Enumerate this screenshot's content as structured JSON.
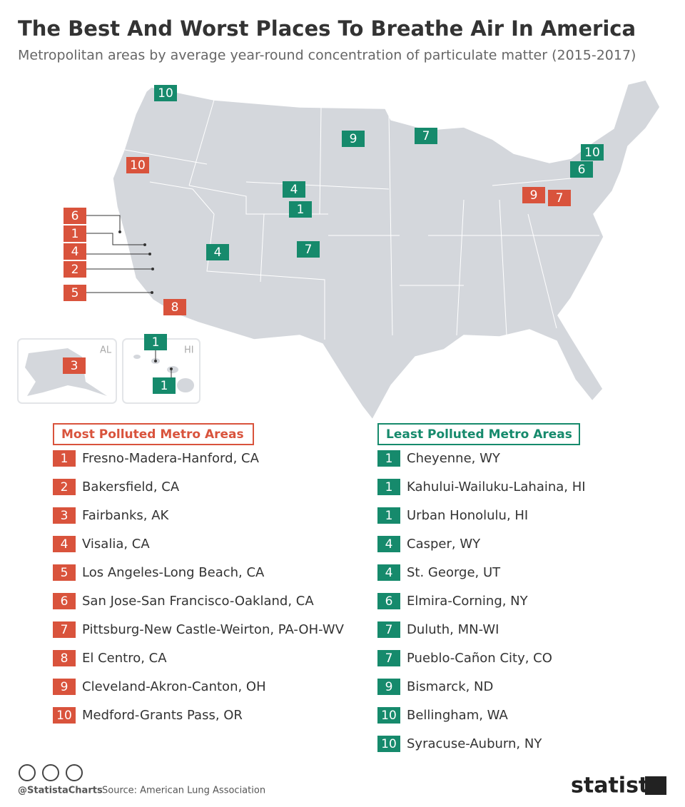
{
  "header": {
    "title": "The Best And Worst Places To Breathe Air In America",
    "subtitle": "Metropolitan areas by average year-round concentration of particulate matter (2015-2017)"
  },
  "map": {
    "insets": [
      "AL",
      "HI"
    ]
  },
  "most_polluted": {
    "heading": "Most Polluted Metro Areas",
    "items": [
      {
        "rank": 1,
        "name": "Fresno-Madera-Hanford, CA"
      },
      {
        "rank": 2,
        "name": "Bakersfield, CA"
      },
      {
        "rank": 3,
        "name": "Fairbanks, AK"
      },
      {
        "rank": 4,
        "name": "Visalia, CA"
      },
      {
        "rank": 5,
        "name": "Los Angeles-Long Beach, CA"
      },
      {
        "rank": 6,
        "name": "San Jose-San Francisco-Oakland, CA"
      },
      {
        "rank": 7,
        "name": "Pittsburg-New Castle-Weirton, PA-OH-WV"
      },
      {
        "rank": 8,
        "name": "El Centro, CA"
      },
      {
        "rank": 9,
        "name": "Cleveland-Akron-Canton, OH"
      },
      {
        "rank": 10,
        "name": "Medford-Grants Pass, OR"
      }
    ]
  },
  "least_polluted": {
    "heading": "Least Polluted Metro Areas",
    "items": [
      {
        "rank": 1,
        "name": "Cheyenne, WY"
      },
      {
        "rank": 1,
        "name": "Kahului-Wailuku-Lahaina, HI"
      },
      {
        "rank": 1,
        "name": "Urban Honolulu, HI"
      },
      {
        "rank": 4,
        "name": "Casper, WY"
      },
      {
        "rank": 4,
        "name": "St. George, UT"
      },
      {
        "rank": 6,
        "name": "Elmira-Corning, NY"
      },
      {
        "rank": 7,
        "name": "Duluth, MN-WI"
      },
      {
        "rank": 7,
        "name": "Pueblo-Cañon City, CO"
      },
      {
        "rank": 9,
        "name": "Bismarck, ND"
      },
      {
        "rank": 10,
        "name": "Bellingham, WA"
      },
      {
        "rank": 10,
        "name": "Syracuse-Auburn, NY"
      }
    ]
  },
  "footer": {
    "handle": "@StatistaCharts",
    "source": "Source: American Lung Association",
    "brand": "statista"
  }
}
